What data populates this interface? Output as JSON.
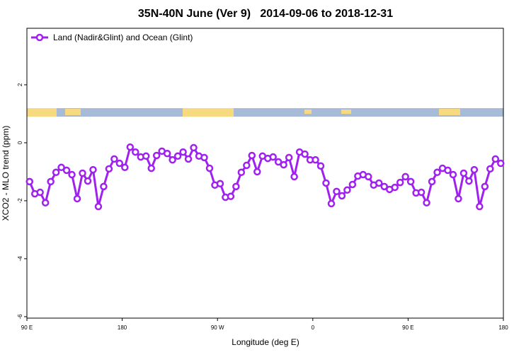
{
  "chart_data": {
    "type": "line",
    "title": "35N-40N June (Ver 9)   2014-09-06 to 2018-12-31",
    "xlabel": "Longitude (deg E)",
    "ylabel": "XCO2 - MLO trend (ppm)",
    "xlim": [
      90,
      540
    ],
    "xticks": [
      {
        "value": 90,
        "label": "90 E"
      },
      {
        "value": 180,
        "label": "180"
      },
      {
        "value": 270,
        "label": "90 W"
      },
      {
        "value": 360,
        "label": "0"
      },
      {
        "value": 450,
        "label": "90 E"
      },
      {
        "value": 540,
        "label": "180"
      }
    ],
    "ylim": [
      -6.05,
      3.95
    ],
    "yticks": [
      -6,
      -4,
      -2,
      0,
      2
    ],
    "legend": "top-left",
    "x": [
      92.5,
      97.5,
      102.5,
      107.5,
      112.5,
      117.5,
      122.5,
      127.5,
      132.5,
      137.5,
      142.5,
      147.5,
      152.5,
      157.5,
      162.5,
      167.5,
      172.5,
      177.5,
      182.5,
      187.5,
      192.5,
      197.5,
      202.5,
      207.5,
      212.5,
      217.5,
      222.5,
      227.5,
      232.5,
      237.5,
      242.5,
      247.5,
      252.5,
      257.5,
      262.5,
      267.5,
      272.5,
      277.5,
      282.5,
      287.5,
      292.5,
      297.5,
      302.5,
      307.5,
      312.5,
      317.5,
      322.5,
      327.5,
      332.5,
      337.5,
      342.5,
      347.5,
      352.5,
      357.5,
      362.5,
      367.5,
      372.5,
      377.5,
      382.5,
      387.5,
      392.5,
      397.5,
      402.5,
      407.5,
      412.5,
      417.5,
      422.5,
      427.5,
      432.5,
      437.5,
      442.5,
      447.5,
      452.5,
      457.5,
      462.5,
      467.5,
      472.5,
      477.5,
      482.5,
      487.5,
      492.5,
      497.5,
      502.5,
      507.5,
      512.5,
      517.5,
      522.5,
      527.5,
      532.5,
      537.5
    ],
    "series": [
      {
        "name": "Land (Nadir&Glint) and Ocean (Glint)",
        "color": "#a020f0",
        "values": [
          -1.34,
          -1.76,
          -1.71,
          -2.07,
          -1.34,
          -1.02,
          -0.85,
          -0.95,
          -1.1,
          -1.93,
          -1.05,
          -1.32,
          -0.93,
          -2.2,
          -1.51,
          -0.9,
          -0.56,
          -0.71,
          -0.85,
          -0.15,
          -0.32,
          -0.49,
          -0.46,
          -0.88,
          -0.44,
          -0.29,
          -0.37,
          -0.59,
          -0.46,
          -0.32,
          -0.56,
          -0.17,
          -0.46,
          -0.51,
          -0.88,
          -1.46,
          -1.41,
          -1.88,
          -1.85,
          -1.51,
          -1.02,
          -0.78,
          -0.44,
          -1.0,
          -0.46,
          -0.54,
          -0.49,
          -0.66,
          -0.76,
          -0.51,
          -1.17,
          -0.32,
          -0.39,
          -0.59,
          -0.59,
          -0.8,
          -1.39,
          -2.1,
          -1.68,
          -1.83,
          -1.63,
          -1.44,
          -1.15,
          -1.1,
          -1.17,
          -1.46,
          -1.39,
          -1.51,
          -1.61,
          -1.54,
          -1.37,
          -1.17,
          -1.34,
          -1.73,
          -1.71,
          -2.07,
          -1.34,
          -1.02,
          -0.88,
          -0.95,
          -1.1,
          -1.93,
          -1.05,
          -1.32,
          -0.93,
          -2.2,
          -1.51,
          -0.9,
          -0.56,
          -0.71
        ]
      }
    ]
  }
}
